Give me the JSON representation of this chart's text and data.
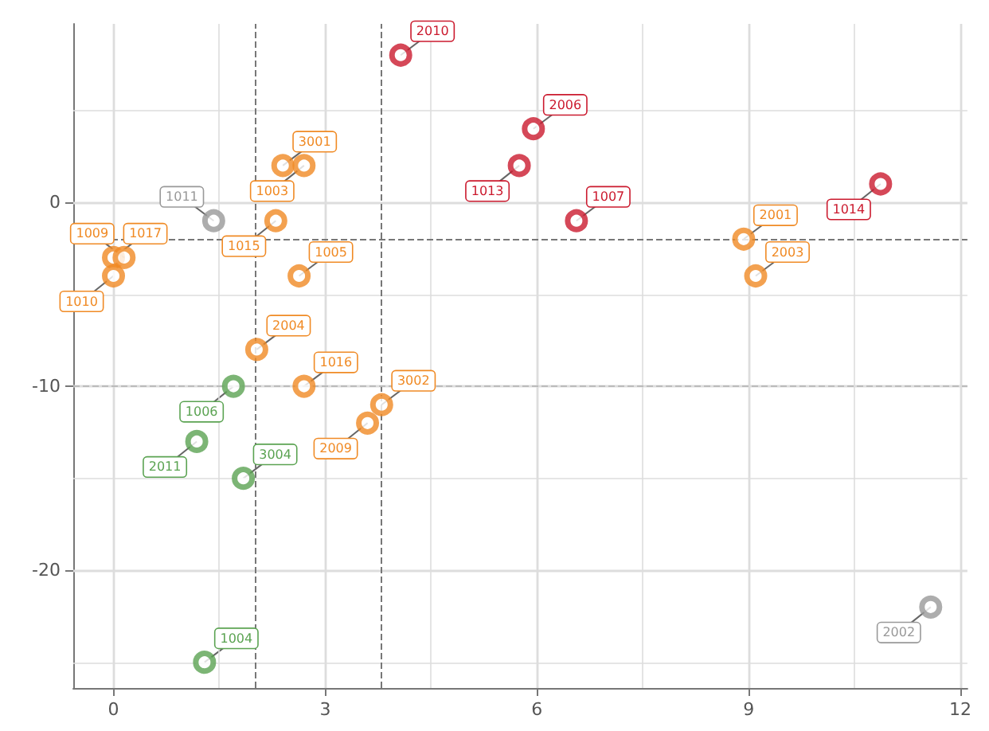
{
  "chart_data": {
    "type": "scatter",
    "series": [
      {
        "color": "#cb1a2e",
        "x": [
          4.07,
          5.95,
          5.75,
          6.56,
          10.87
        ],
        "values": [
          8,
          4,
          2,
          -1,
          1
        ]
      },
      {
        "color": "#f08a24",
        "x": [
          2.4,
          2.7,
          2.3,
          2.63,
          0,
          0.15,
          0,
          2.03,
          2.7,
          3.6,
          3.8,
          8.93,
          9.1
        ],
        "values": [
          2,
          2,
          -1,
          -4,
          -3,
          -3,
          -4,
          -8,
          -10,
          -12,
          -11,
          -2,
          -4
        ]
      },
      {
        "color": "#999999",
        "x": [
          1.42,
          11.58
        ],
        "values": [
          -1,
          -22
        ]
      },
      {
        "color": "#5ba352",
        "x": [
          1.7,
          1.18,
          1.84,
          1.29
        ],
        "values": [
          -10,
          -13,
          -15,
          -25
        ]
      }
    ],
    "annotations": [
      {
        "text": "2010",
        "x": 4.07,
        "y": 8
      },
      {
        "text": "2006",
        "x": 5.95,
        "y": 4
      },
      {
        "text": "1013",
        "x": 5.75,
        "y": 2
      },
      {
        "text": "1007",
        "x": 6.56,
        "y": -1
      },
      {
        "text": "1014",
        "x": 10.87,
        "y": 1
      },
      {
        "text": "3001",
        "x": 2.4,
        "y": 2
      },
      {
        "text": "1003",
        "x": 2.7,
        "y": 2
      },
      {
        "text": "1015",
        "x": 2.3,
        "y": -1
      },
      {
        "text": "1005",
        "x": 2.63,
        "y": -4
      },
      {
        "text": "1017",
        "x": 0,
        "y": -3
      },
      {
        "text": "1009",
        "x": 0.15,
        "y": -3
      },
      {
        "text": "1010",
        "x": 0,
        "y": -4
      },
      {
        "text": "2004",
        "x": 2.03,
        "y": -8
      },
      {
        "text": "1016",
        "x": 2.7,
        "y": -10
      },
      {
        "text": "2009",
        "x": 3.6,
        "y": -12
      },
      {
        "text": "3002",
        "x": 3.8,
        "y": -11
      },
      {
        "text": "2001",
        "x": 8.93,
        "y": -2
      },
      {
        "text": "2003",
        "x": 9.1,
        "y": -4
      },
      {
        "text": "1011",
        "x": 1.42,
        "y": -1
      },
      {
        "text": "2002",
        "x": 11.58,
        "y": -22
      },
      {
        "text": "1006",
        "x": 1.7,
        "y": -10
      },
      {
        "text": "2011",
        "x": 1.18,
        "y": -13
      },
      {
        "text": "3004",
        "x": 1.84,
        "y": -15
      },
      {
        "text": "1004",
        "x": 1.29,
        "y": -25
      }
    ],
    "ref_lines": [
      {
        "axis": "x",
        "value": 2,
        "color": "#777777",
        "line_style": "dashed"
      },
      {
        "axis": "x",
        "value": 3.8,
        "color": "#777777",
        "line_style": "dashed"
      },
      {
        "axis": "y",
        "value": -2,
        "color": "#777777",
        "line_style": "dashed"
      },
      {
        "axis": "y",
        "value": -10,
        "color": "#bbbbbb",
        "line_style": "dashed"
      }
    ],
    "xlim": [
      -0.57,
      12.1
    ],
    "ylim": [
      -26.4,
      9.7
    ],
    "xticks": [
      0,
      3,
      6,
      9,
      12
    ],
    "yticks": [
      -20,
      -10,
      0
    ],
    "grid": true,
    "marker": "circle"
  }
}
